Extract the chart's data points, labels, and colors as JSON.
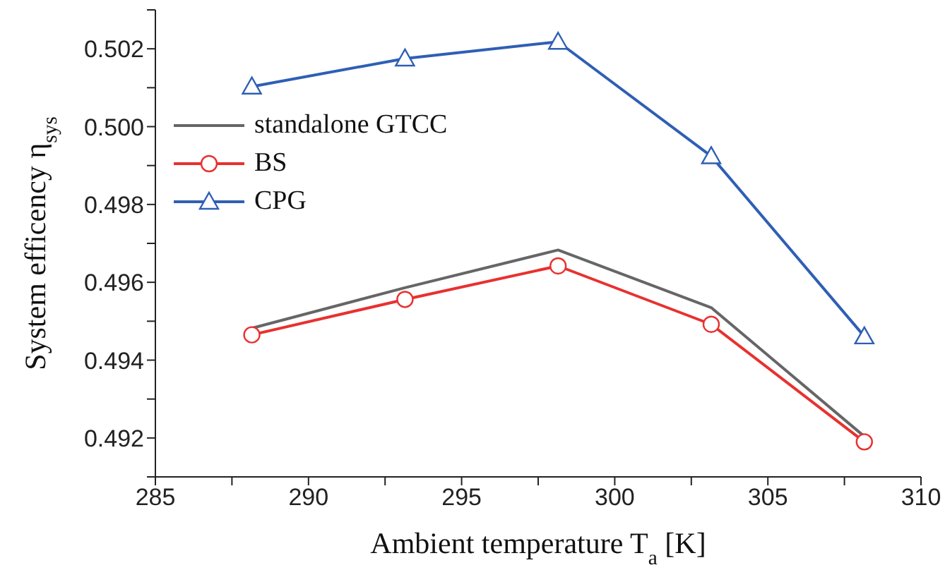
{
  "chart_data": {
    "type": "line",
    "xlabel": "Ambient temperature T$_{a}$ [K]",
    "ylabel": "System efficency η$_{sys}$",
    "x": [
      288.15,
      293.15,
      298.15,
      303.15,
      308.15
    ],
    "series": [
      {
        "name": "standalone GTCC",
        "color": "#666666",
        "marker": "none",
        "values": [
          0.49482,
          0.49586,
          0.49683,
          0.49535,
          0.49204
        ]
      },
      {
        "name": "BS",
        "color": "#e8312f",
        "marker": "circle",
        "values": [
          0.49465,
          0.49556,
          0.49642,
          0.49492,
          0.4919
        ]
      },
      {
        "name": "CPG",
        "color": "#2f5fb5",
        "marker": "triangle",
        "values": [
          0.50103,
          0.50175,
          0.50218,
          0.49924,
          0.49461
        ]
      }
    ],
    "xlim": [
      285,
      310
    ],
    "xticks": [
      285,
      {
        "value": 287.5,
        "label": null
      },
      290,
      {
        "value": 292.5,
        "label": null
      },
      295,
      {
        "value": 297.5,
        "label": null
      },
      300,
      {
        "value": 302.5,
        "label": null
      },
      305,
      {
        "value": 307.5,
        "label": null
      },
      310
    ],
    "ylim": [
      0.491,
      0.503
    ],
    "yticks": [
      {
        "value": 0.491,
        "label": null
      },
      {
        "value": 0.492,
        "label": "0.492"
      },
      {
        "value": 0.493,
        "label": null
      },
      {
        "value": 0.494,
        "label": "0.494"
      },
      {
        "value": 0.495,
        "label": null
      },
      {
        "value": 0.496,
        "label": "0.496"
      },
      {
        "value": 0.497,
        "label": null
      },
      {
        "value": 0.498,
        "label": "0.498"
      },
      {
        "value": 0.499,
        "label": null
      },
      {
        "value": 0.5,
        "label": "0.500"
      },
      {
        "value": 0.501,
        "label": null
      },
      {
        "value": 0.502,
        "label": "0.502"
      },
      {
        "value": 0.503,
        "label": null
      }
    ],
    "grid": false,
    "legend": "top left",
    "line_style": "solid"
  }
}
